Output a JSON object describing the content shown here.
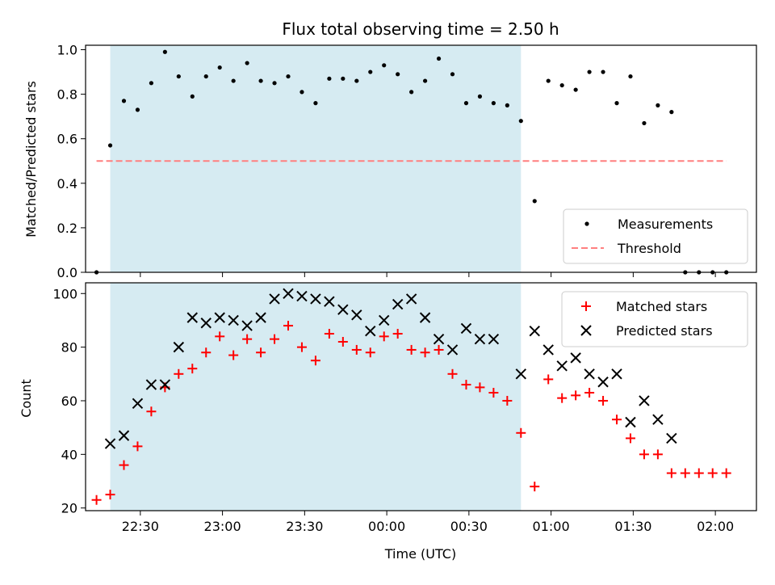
{
  "chart_data": {
    "title": "Flux total observing time = 2.50 h",
    "xlabel": "Time (UTC)",
    "x_ticks": [
      "22:30",
      "23:00",
      "23:30",
      "00:00",
      "00:30",
      "01:00",
      "01:30",
      "02:00"
    ],
    "x_range": [
      "22:10",
      "02:15"
    ],
    "shaded_interval": [
      "22:19",
      "00:49"
    ],
    "shade_color": "#add8e6",
    "x_times": [
      "22:14",
      "22:19",
      "22:24",
      "22:29",
      "22:34",
      "22:39",
      "22:44",
      "22:49",
      "22:54",
      "22:59",
      "23:04",
      "23:09",
      "23:14",
      "23:19",
      "23:24",
      "23:29",
      "23:34",
      "23:39",
      "23:44",
      "23:49",
      "23:54",
      "23:59",
      "00:04",
      "00:09",
      "00:14",
      "00:19",
      "00:24",
      "00:29",
      "00:34",
      "00:39",
      "00:44",
      "00:49",
      "00:54",
      "00:59",
      "01:04",
      "01:09",
      "01:14",
      "01:19",
      "01:24",
      "01:29",
      "01:34",
      "01:39",
      "01:44",
      "01:49",
      "01:54",
      "01:59",
      "02:04"
    ],
    "panels": [
      {
        "type": "scatter",
        "ylabel": "Matched/Predicted stars",
        "ylim": [
          0,
          1.02
        ],
        "y_ticks": [
          "0.0",
          "0.2",
          "0.4",
          "0.6",
          "0.8",
          "1.0"
        ],
        "legend_position": "lower-right",
        "threshold": {
          "name": "Threshold",
          "value": 0.5,
          "x_range": [
            "22:14",
            "02:04"
          ],
          "color": "#ff7f7f"
        },
        "series": [
          {
            "name": "Measurements",
            "color": "#000000",
            "marker": "dot",
            "values": [
              0.0,
              0.57,
              0.77,
              0.73,
              0.85,
              0.99,
              0.88,
              0.79,
              0.88,
              0.92,
              0.86,
              0.94,
              0.86,
              0.85,
              0.88,
              0.81,
              0.76,
              0.87,
              0.87,
              0.86,
              0.9,
              0.93,
              0.89,
              0.81,
              0.86,
              0.96,
              0.89,
              0.76,
              0.79,
              0.76,
              0.75,
              0.68,
              0.32,
              0.86,
              0.84,
              0.82,
              0.9,
              0.9,
              0.76,
              0.88,
              0.67,
              0.75,
              0.72,
              0.0,
              0.0,
              0.0,
              0.0
            ]
          }
        ]
      },
      {
        "type": "scatter",
        "ylabel": "Count",
        "ylim": [
          19,
          104
        ],
        "y_ticks": [
          "20",
          "40",
          "60",
          "80",
          "100"
        ],
        "legend_position": "upper-right",
        "series": [
          {
            "name": "Matched stars",
            "color": "#ff0000",
            "marker": "plus",
            "values": [
              23,
              25,
              36,
              43,
              56,
              65,
              70,
              72,
              78,
              84,
              77,
              83,
              78,
              83,
              88,
              80,
              75,
              85,
              82,
              79,
              78,
              84,
              85,
              79,
              78,
              79,
              70,
              66,
              65,
              63,
              60,
              48,
              28,
              68,
              61,
              62,
              63,
              60,
              53,
              46,
              40,
              40,
              33,
              33,
              33,
              33,
              33
            ]
          },
          {
            "name": "Predicted stars",
            "color": "#000000",
            "marker": "x",
            "values": [
              null,
              44,
              47,
              59,
              66,
              66,
              80,
              91,
              89,
              91,
              90,
              88,
              91,
              98,
              100,
              99,
              98,
              97,
              94,
              92,
              86,
              90,
              96,
              98,
              91,
              83,
              79,
              87,
              83,
              83,
              null,
              70,
              86,
              79,
              73,
              76,
              70,
              67,
              70,
              52,
              60,
              53,
              46,
              null,
              null,
              null,
              null
            ]
          }
        ]
      }
    ]
  }
}
